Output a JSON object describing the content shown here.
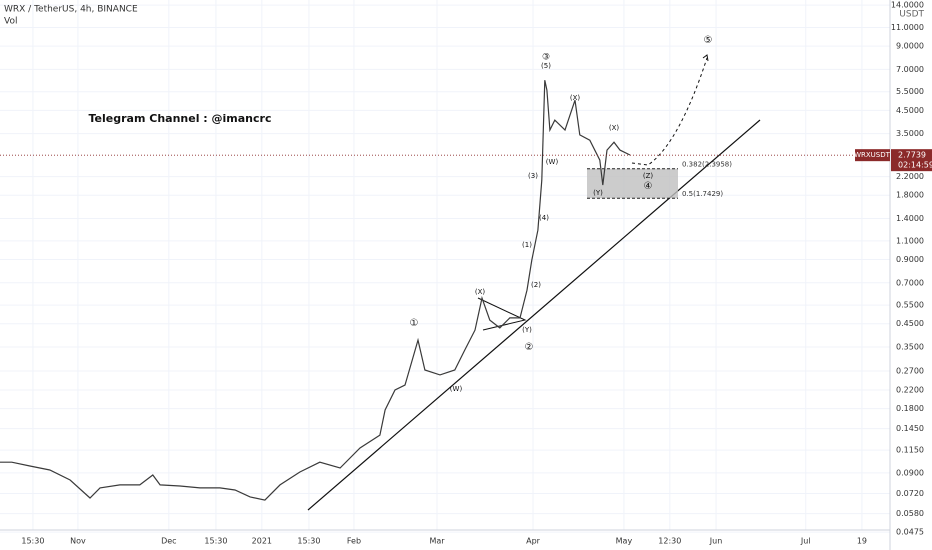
{
  "chart_data": {
    "type": "line",
    "title": "WRX / TetherUS, 4h, BINANCE",
    "subtitle": "Vol",
    "y_axis_label": "USDT",
    "log_scale": true,
    "xlim": [
      -25.8,
      268.9
    ],
    "ylim": [
      0.04,
      14.8
    ],
    "xticks": [
      {
        "value": -14.9,
        "label": "15:30"
      },
      {
        "value": 0,
        "label": "Nov"
      },
      {
        "value": 30.1,
        "label": "Dec"
      },
      {
        "value": 45.7,
        "label": "15:30"
      },
      {
        "value": 60.9,
        "label": "2021"
      },
      {
        "value": 76.5,
        "label": "15:30"
      },
      {
        "value": 91.4,
        "label": "Feb"
      },
      {
        "value": 118.9,
        "label": "Mar"
      },
      {
        "value": 150.7,
        "label": "Apr"
      },
      {
        "value": 180.8,
        "label": "May"
      },
      {
        "value": 196,
        "label": "12:30"
      },
      {
        "value": 211.3,
        "label": "Jun"
      },
      {
        "value": 241,
        "label": "Jul"
      },
      {
        "value": 259.6,
        "label": "19"
      }
    ],
    "yticks": [
      {
        "value": 14,
        "label": "14.0000"
      },
      {
        "value": 11,
        "label": "11.0000"
      },
      {
        "value": 9,
        "label": "9.0000"
      },
      {
        "value": 7,
        "label": "7.0000"
      },
      {
        "value": 5.5,
        "label": "5.5000"
      },
      {
        "value": 4.5,
        "label": "4.5000"
      },
      {
        "value": 3.5,
        "label": "3.5000"
      },
      {
        "value": 2.2,
        "label": "2.2000"
      },
      {
        "value": 1.8,
        "label": "1.8000"
      },
      {
        "value": 1.4,
        "label": "1.4000"
      },
      {
        "value": 1.1,
        "label": "1.1000"
      },
      {
        "value": 0.9,
        "label": "0.9000"
      },
      {
        "value": 0.7,
        "label": "0.7000"
      },
      {
        "value": 0.55,
        "label": "0.5500"
      },
      {
        "value": 0.45,
        "label": "0.4500"
      },
      {
        "value": 0.35,
        "label": "0.3500"
      },
      {
        "value": 0.27,
        "label": "0.2700"
      },
      {
        "value": 0.22,
        "label": "0.2200"
      },
      {
        "value": 0.18,
        "label": "0.1800"
      },
      {
        "value": 0.145,
        "label": "0.1450"
      },
      {
        "value": 0.115,
        "label": "0.1150"
      },
      {
        "value": 0.09,
        "label": "0.0900"
      },
      {
        "value": 0.072,
        "label": "0.0720"
      },
      {
        "value": 0.058,
        "label": "0.0580"
      },
      {
        "value": 0.0475,
        "label": "0.0475"
      }
    ],
    "grid": true,
    "series": [
      {
        "name": "WRXUSDT",
        "color": "#3a3a3a",
        "x": [
          -25.8,
          -21.9,
          -15.9,
          -9.3,
          -2.6,
          4.0,
          7.3,
          13.9,
          20.5,
          24.8,
          27.2,
          33.8,
          40.4,
          47.0,
          52.0,
          57.0,
          61.9,
          66.9,
          73.5,
          80.1,
          86.8,
          93.4,
          100.0,
          101.7,
          105.0,
          108.3,
          112.6,
          114.9,
          119.9,
          124.8,
          128.1,
          131.5,
          133.8,
          136.4,
          139.7,
          143.0,
          146.4,
          148.7,
          150.3,
          152.3,
          153.6,
          154.6,
          155.3,
          156.3,
          157.9,
          161.3,
          164.6,
          166.2,
          169.5,
          172.8,
          173.8,
          175.2,
          177.5,
          179.5,
          182.8
        ],
        "values": [
          0.101,
          0.101,
          0.0969,
          0.0928,
          0.0833,
          0.0686,
          0.0765,
          0.079,
          0.079,
          0.0879,
          0.079,
          0.0781,
          0.0765,
          0.0765,
          0.0748,
          0.0694,
          0.0671,
          0.079,
          0.0908,
          0.101,
          0.0948,
          0.1177,
          0.1353,
          0.1773,
          0.22,
          0.232,
          0.377,
          0.273,
          0.259,
          0.273,
          0.339,
          0.42,
          0.593,
          0.468,
          0.43,
          0.479,
          0.479,
          0.647,
          0.894,
          1.236,
          2.12,
          6.23,
          5.6,
          3.64,
          4.05,
          3.64,
          5.02,
          3.45,
          3.26,
          2.63,
          2.01,
          2.93,
          3.19,
          2.93,
          2.78
        ]
      }
    ],
    "current_price": {
      "symbol": "WRXUSDT",
      "value": 2.7739,
      "label": "2.7739",
      "countdown": "02:14:59"
    },
    "fib_levels": [
      {
        "value": 2.3958,
        "label": "0.382(2.3958)"
      },
      {
        "value": 1.7429,
        "label": "0.5(1.7429)"
      }
    ],
    "annotations": [
      "Telegram Channel : @imancrc",
      "③",
      "(5)",
      "(X)",
      "(X)",
      "(W)",
      "(3)",
      "(4)",
      "(1)",
      "(2)",
      "(X)",
      "(Y)",
      "②",
      "①",
      "(W)",
      "⑤",
      "(Z)",
      "④",
      "(Y)"
    ]
  }
}
